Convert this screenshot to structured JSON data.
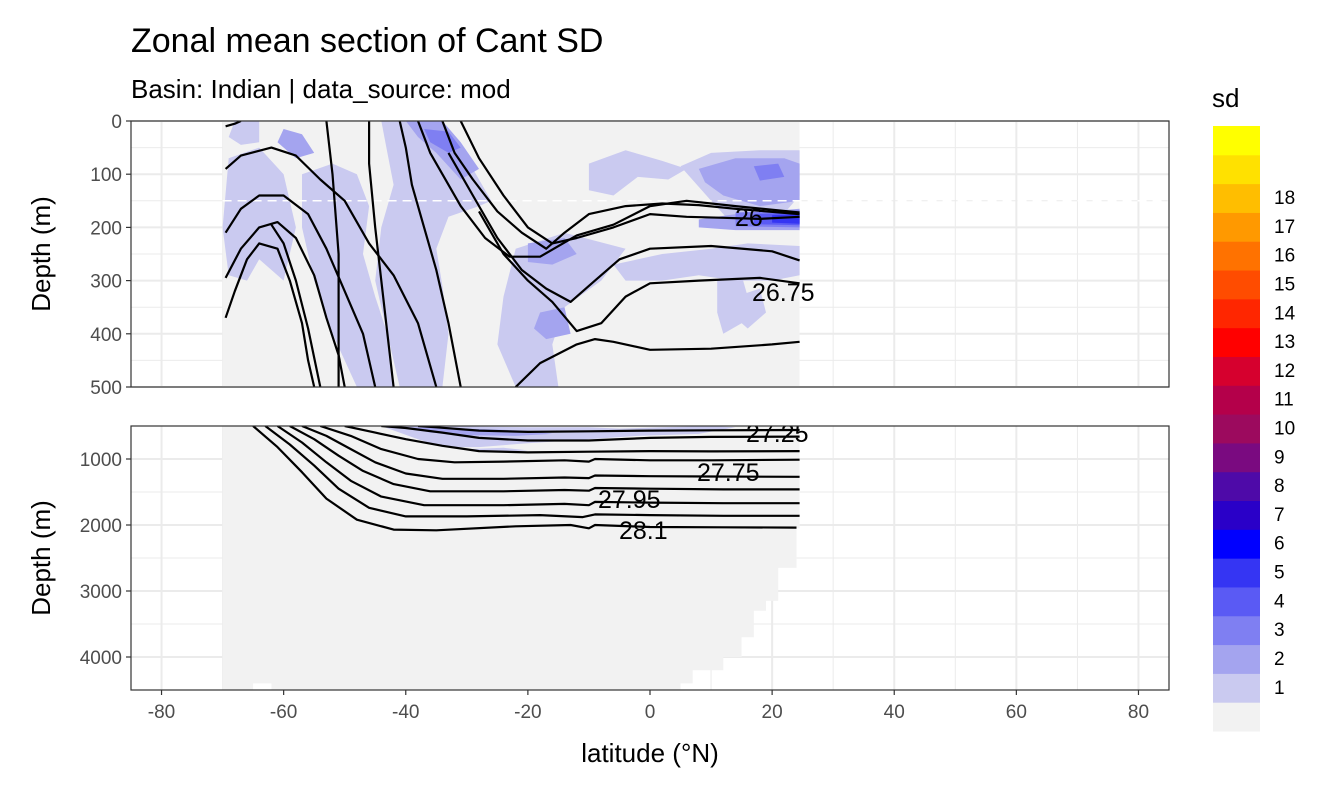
{
  "title": "Zonal mean section of Cant SD",
  "subtitle": "Basin: Indian | data_source: mod",
  "chart_data": {
    "type": "heatmap",
    "xlabel": "latitude (°N)",
    "ylabel": "Depth (m)",
    "xlim": [
      -85,
      85
    ],
    "x_ticks": [
      -80,
      -60,
      -40,
      -20,
      0,
      20,
      40,
      60,
      80
    ],
    "panels": [
      {
        "name": "upper",
        "ylim": [
          0,
          500
        ],
        "y_ticks": [
          0,
          100,
          200,
          300,
          400,
          500
        ],
        "dashed_reference_depth": 150
      },
      {
        "name": "lower",
        "ylim": [
          500,
          4500
        ],
        "y_ticks": [
          1000,
          2000,
          3000,
          4000
        ]
      }
    ],
    "data_extent": {
      "lat_min": -70,
      "lat_max": 24.5
    },
    "legend": {
      "title": "sd",
      "position": "right",
      "levels": [
        "1",
        "2",
        "3",
        "4",
        "5",
        "6",
        "7",
        "8",
        "9",
        "10",
        "11",
        "12",
        "13",
        "14",
        "15",
        "16",
        "17",
        "18"
      ],
      "colors": [
        "#f2f2f2",
        "#cacaf0",
        "#a4a4ef",
        "#7f7ff2",
        "#5a5af4",
        "#3535f3",
        "#0000ff",
        "#2a00c8",
        "#4e0aa8",
        "#7a0a80",
        "#9c0a5e",
        "#b4004a",
        "#d6002e",
        "#ff0000",
        "#ff2600",
        "#ff4c00",
        "#ff7200",
        "#ff9900",
        "#ffbe00",
        "#ffe100",
        "#ffff00"
      ]
    },
    "isopycnal_labels": [
      "26",
      "26.75",
      "27.25",
      "27.75",
      "27.95",
      "28.1"
    ]
  }
}
